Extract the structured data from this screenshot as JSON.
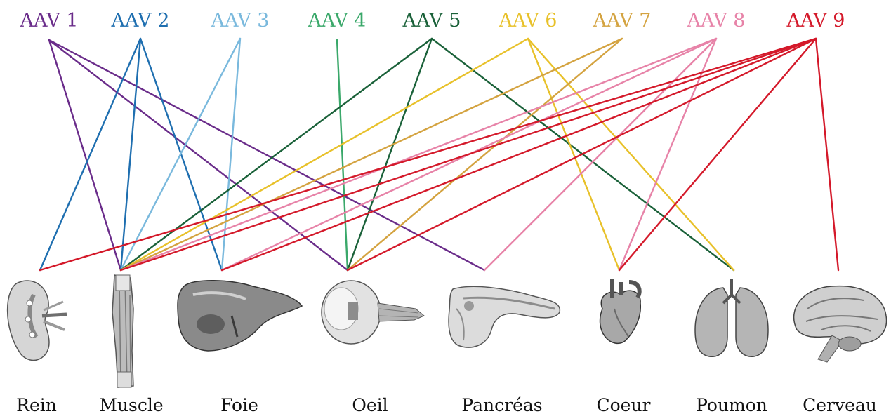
{
  "serotypes": [
    {
      "id": "aav1",
      "label": "AAV 1",
      "color": "#6a2c8a"
    },
    {
      "id": "aav2",
      "label": "AAV 2",
      "color": "#1f6fb0"
    },
    {
      "id": "aav3",
      "label": "AAV 3",
      "color": "#7ab9dd"
    },
    {
      "id": "aav4",
      "label": "AAV 4",
      "color": "#3aa86a"
    },
    {
      "id": "aav5",
      "label": "AAV 5",
      "color": "#1a6139"
    },
    {
      "id": "aav6",
      "label": "AAV 6",
      "color": "#e8c12a"
    },
    {
      "id": "aav7",
      "label": "AAV 7",
      "color": "#d4a340"
    },
    {
      "id": "aav8",
      "label": "AAV 8",
      "color": "#e783a8"
    },
    {
      "id": "aav9",
      "label": "AAV 9",
      "color": "#d4192a"
    }
  ],
  "organs": [
    {
      "id": "rein",
      "label": "Rein",
      "icon": "kidney-icon"
    },
    {
      "id": "muscle",
      "label": "Muscle",
      "icon": "muscle-icon"
    },
    {
      "id": "foie",
      "label": "Foie",
      "icon": "liver-icon"
    },
    {
      "id": "oeil",
      "label": "Oeil",
      "icon": "eye-icon"
    },
    {
      "id": "pancreas",
      "label": "Pancréas",
      "icon": "pancreas-icon"
    },
    {
      "id": "coeur",
      "label": "Coeur",
      "icon": "heart-icon"
    },
    {
      "id": "poumon",
      "label": "Poumon",
      "icon": "lungs-icon"
    },
    {
      "id": "cerveau",
      "label": "Cerveau",
      "icon": "brain-icon"
    }
  ],
  "links": [
    [
      "aav1",
      "muscle"
    ],
    [
      "aav1",
      "oeil"
    ],
    [
      "aav1",
      "pancreas"
    ],
    [
      "aav2",
      "rein"
    ],
    [
      "aav2",
      "muscle"
    ],
    [
      "aav2",
      "foie"
    ],
    [
      "aav3",
      "muscle"
    ],
    [
      "aav3",
      "foie"
    ],
    [
      "aav4",
      "oeil"
    ],
    [
      "aav5",
      "muscle"
    ],
    [
      "aav5",
      "oeil"
    ],
    [
      "aav5",
      "poumon"
    ],
    [
      "aav6",
      "muscle"
    ],
    [
      "aav6",
      "coeur"
    ],
    [
      "aav6",
      "poumon"
    ],
    [
      "aav7",
      "muscle"
    ],
    [
      "aav7",
      "oeil"
    ],
    [
      "aav8",
      "muscle"
    ],
    [
      "aav8",
      "foie"
    ],
    [
      "aav8",
      "pancreas"
    ],
    [
      "aav8",
      "coeur"
    ],
    [
      "aav9",
      "rein"
    ],
    [
      "aav9",
      "muscle"
    ],
    [
      "aav9",
      "foie"
    ],
    [
      "aav9",
      "oeil"
    ],
    [
      "aav9",
      "coeur"
    ],
    [
      "aav9",
      "cerveau"
    ]
  ]
}
